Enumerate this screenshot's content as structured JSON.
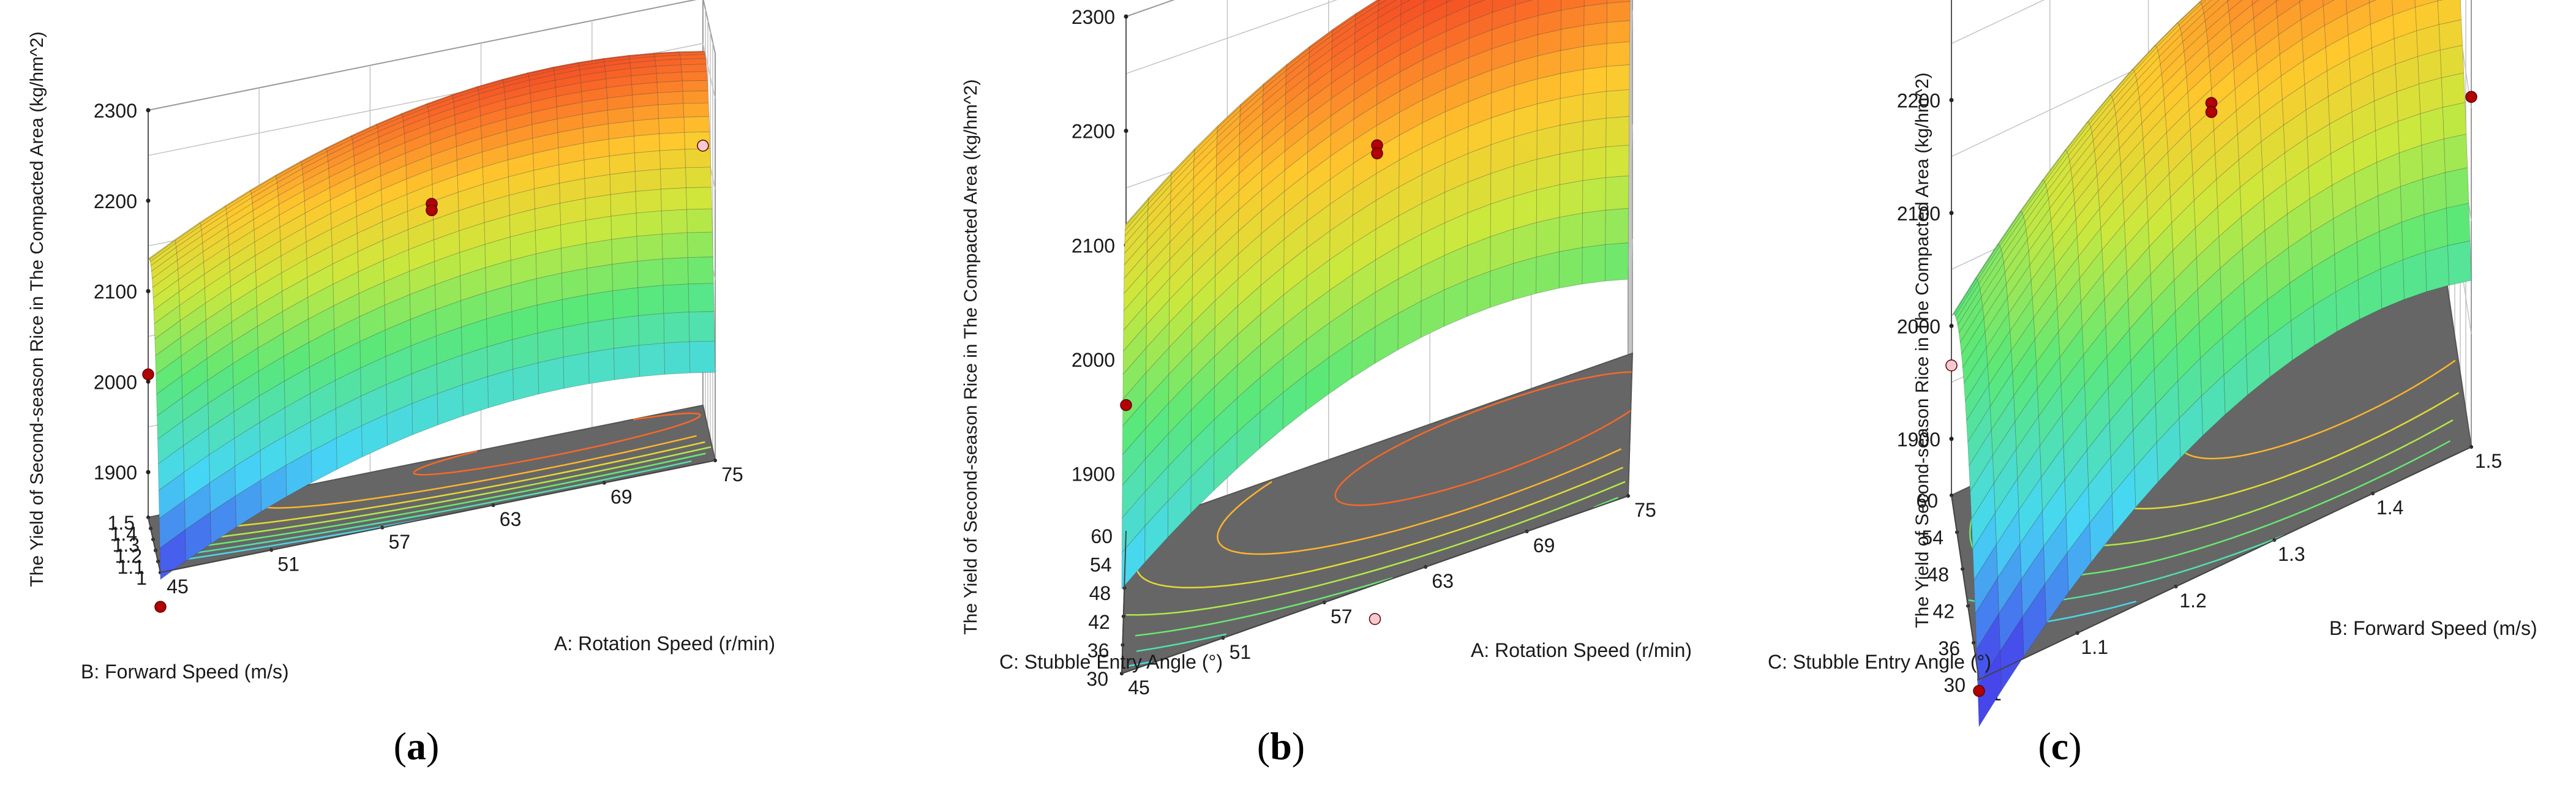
{
  "chart_data": [
    {
      "type": "surface3d",
      "panel_label": "a",
      "zlabel": "The Yield of Second-season Rice in The Compacted Area (kg/hm^2)",
      "xlabel": "A: Rotation Speed (r/min)",
      "ylabel": "B: Forward Speed (m/s)",
      "x_ticks": [
        "45",
        "51",
        "57",
        "63",
        "69",
        "75"
      ],
      "y_ticks": [
        "1",
        "1.1",
        "1.2",
        "1.3",
        "1.4",
        "1.5"
      ],
      "z_ticks": [
        "1900",
        "2000",
        "2100",
        "2200",
        "2300"
      ],
      "xlim": [
        45,
        75
      ],
      "ylim": [
        1,
        1.5
      ],
      "zlim": [
        1850,
        2300
      ],
      "surface": {
        "x_center": 67,
        "y_center": 1.42,
        "peak": 2265,
        "x_curvature": 0.5,
        "y_curvature": 0.95
      },
      "points": [
        {
          "x": 60,
          "y": 1.25,
          "z": 2165,
          "color": "#b30000"
        },
        {
          "x": 60,
          "y": 1.25,
          "z": 2158,
          "color": "#b30000"
        },
        {
          "x": 45,
          "y": 1.5,
          "z": 2008,
          "color": "#b30000"
        },
        {
          "x": 75,
          "y": 1.5,
          "z": 2137,
          "color": "#f6c8d2"
        },
        {
          "x": 45,
          "y": 1.0,
          "z": 1812,
          "color": "#b30000"
        }
      ]
    },
    {
      "type": "surface3d",
      "panel_label": "b",
      "zlabel": "The Yield of Second-season Rice in The Compacted Area (kg/hm^2)",
      "xlabel": "A: Rotation Speed (r/min)",
      "ylabel": "C: Stubble Entry Angle (°)",
      "x_ticks": [
        "45",
        "51",
        "57",
        "63",
        "69",
        "75"
      ],
      "y_ticks": [
        "30",
        "36",
        "42",
        "48",
        "54",
        "60"
      ],
      "z_ticks": [
        "1900",
        "2000",
        "2100",
        "2200",
        "2300"
      ],
      "xlim": [
        45,
        75
      ],
      "ylim": [
        30,
        60
      ],
      "zlim": [
        1850,
        2300
      ],
      "surface": {
        "x_center": 67,
        "y_center": 52,
        "peak": 2275,
        "x_curvature": 0.55,
        "y_curvature": 0.9
      },
      "points": [
        {
          "x": 60,
          "y": 45,
          "z": 2172,
          "color": "#b30000"
        },
        {
          "x": 60,
          "y": 45,
          "z": 2165,
          "color": "#b30000"
        },
        {
          "x": 60,
          "y": 60,
          "z": 2284,
          "color": "#b30000"
        },
        {
          "x": 45,
          "y": 60,
          "z": 1960,
          "color": "#b30000"
        },
        {
          "x": 75,
          "y": 60,
          "z": 2185,
          "color": "#f6c8d2"
        },
        {
          "x": 60,
          "y": 30,
          "z": 1820,
          "color": "#f6c8d2"
        }
      ]
    },
    {
      "type": "surface3d",
      "panel_label": "c",
      "zlabel": "The Yield of Second-season Rice in The Compacted Area (kg/hm^2)",
      "xlabel": "B: Forward Speed (m/s)",
      "ylabel": "C: Stubble Entry Angle (°)",
      "x_ticks": [
        "1",
        "1.1",
        "1.2",
        "1.3",
        "1.4",
        "1.5"
      ],
      "y_ticks": [
        "30",
        "36",
        "42",
        "48",
        "54",
        "60"
      ],
      "z_ticks": [
        "1900",
        "2000",
        "2100",
        "2200",
        "2300"
      ],
      "xlim": [
        1,
        1.5
      ],
      "ylim": [
        30,
        60
      ],
      "zlim": [
        1850,
        2300
      ],
      "surface": {
        "x_center": 1.4,
        "y_center": 52,
        "peak": 2240,
        "x_curvature": 0.7,
        "y_curvature": 0.95
      },
      "points": [
        {
          "x": 1.25,
          "y": 45,
          "z": 2176,
          "color": "#b30000"
        },
        {
          "x": 1.25,
          "y": 45,
          "z": 2168,
          "color": "#b30000"
        },
        {
          "x": 1.5,
          "y": 30,
          "z": 2160,
          "color": "#b30000"
        },
        {
          "x": 1.0,
          "y": 60,
          "z": 1965,
          "color": "#f6c8d2"
        },
        {
          "x": 1.0,
          "y": 30,
          "z": 1840,
          "color": "#b30000"
        }
      ]
    }
  ]
}
